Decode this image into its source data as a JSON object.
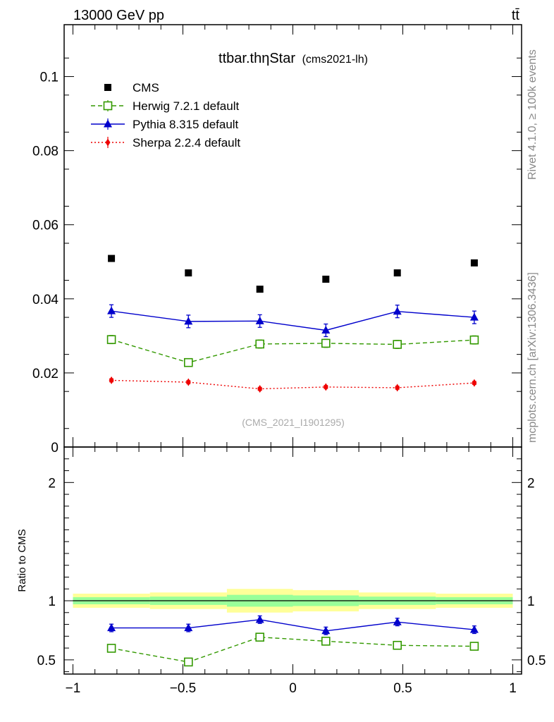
{
  "header": {
    "energy_label": "13000 GeV pp",
    "process_label": "tt̄"
  },
  "side_labels": {
    "rivet": "Rivet 4.1.0, ≥ 100k events",
    "source": "mcplots.cern.ch [arXiv:1306.3436]"
  },
  "chart_data": [
    {
      "type": "scatter",
      "panel": "main",
      "title": "ttbar.thηStar",
      "subtitle": "(cms2021-lh)",
      "watermark": "(CMS_2021_I1901295)",
      "ylim": [
        0,
        0.114
      ],
      "xlim": [
        -1.04,
        1.04
      ],
      "yticks": [
        0,
        0.02,
        0.04,
        0.06,
        0.08,
        0.1
      ],
      "ytick_labels": [
        "0",
        "0.02",
        "0.04",
        "0.06",
        "0.08",
        "0.1"
      ],
      "legend_position": "top-left",
      "x": [
        -0.825,
        -0.475,
        -0.15,
        0.15,
        0.475,
        0.825
      ],
      "series": [
        {
          "name": "CMS",
          "color": "#000000",
          "marker": "square-filled",
          "line": "none",
          "values": [
            0.0509,
            0.047,
            0.0426,
            0.0453,
            0.047,
            0.0497
          ],
          "errors": [
            0.0005,
            0.0005,
            0.0005,
            0.0005,
            0.0005,
            0.0005
          ]
        },
        {
          "name": "Herwig 7.2.1 default",
          "color": "#339900",
          "marker": "square-open",
          "line": "dashed",
          "values": [
            0.029,
            0.0228,
            0.0278,
            0.028,
            0.0277,
            0.0289
          ],
          "errors": [
            0.0011,
            0.001,
            0.0011,
            0.0011,
            0.0011,
            0.0011
          ]
        },
        {
          "name": "Pythia 8.315 default",
          "color": "#0000cc",
          "marker": "triangle-filled",
          "line": "solid",
          "values": [
            0.0367,
            0.0339,
            0.034,
            0.0315,
            0.0366,
            0.035
          ],
          "errors": [
            0.0017,
            0.0017,
            0.0017,
            0.0017,
            0.0017,
            0.0017
          ]
        },
        {
          "name": "Sherpa 2.2.4 default",
          "color": "#ee0000",
          "marker": "diamond-filled",
          "line": "dotted",
          "values": [
            0.018,
            0.0175,
            0.0157,
            0.0162,
            0.016,
            0.0173
          ],
          "errors": [
            0.0004,
            0.0004,
            0.0004,
            0.0004,
            0.0004,
            0.0004
          ]
        }
      ]
    },
    {
      "type": "scatter",
      "panel": "ratio",
      "ylabel": "Ratio to CMS",
      "ylim": [
        0.38,
        2.3
      ],
      "xlim": [
        -1.04,
        1.04
      ],
      "yticks": [
        0.5,
        1,
        2
      ],
      "ytick_labels": [
        "0.5",
        "1",
        "2"
      ],
      "xticks": [
        -1,
        -0.5,
        0,
        0.5,
        1
      ],
      "xtick_labels": [
        "−1",
        "−0.5",
        "0",
        "0.5",
        "1"
      ],
      "reference_line": 1,
      "bands": [
        {
          "name": "total uncertainty",
          "color": "#ffff99",
          "x_low": [
            -1.0,
            -0.65,
            -0.3,
            0.0,
            0.3,
            0.65
          ],
          "x_high": [
            -0.65,
            -0.3,
            0.0,
            0.3,
            0.65,
            1.0
          ],
          "low": [
            0.94,
            0.93,
            0.9,
            0.91,
            0.93,
            0.94
          ],
          "high": [
            1.06,
            1.07,
            1.1,
            1.09,
            1.07,
            1.06
          ]
        },
        {
          "name": "statistical uncertainty",
          "color": "#99ff99",
          "x_low": [
            -1.0,
            -0.65,
            -0.3,
            0.0,
            0.3,
            0.65
          ],
          "x_high": [
            -0.65,
            -0.3,
            0.0,
            0.3,
            0.65,
            1.0
          ],
          "low": [
            0.97,
            0.965,
            0.95,
            0.955,
            0.965,
            0.97
          ],
          "high": [
            1.03,
            1.035,
            1.05,
            1.045,
            1.035,
            1.03
          ]
        }
      ],
      "x": [
        -0.825,
        -0.475,
        -0.15,
        0.15,
        0.475,
        0.825
      ],
      "series": [
        {
          "name": "Herwig 7.2.1 default",
          "color": "#339900",
          "marker": "square-open",
          "line": "dashed",
          "values": [
            0.598,
            0.482,
            0.692,
            0.658,
            0.623,
            0.615
          ],
          "errors": [
            0.025,
            0.025,
            0.025,
            0.025,
            0.025,
            0.025
          ]
        },
        {
          "name": "Pythia 8.315 default",
          "color": "#0000cc",
          "marker": "triangle-filled",
          "line": "solid",
          "values": [
            0.77,
            0.77,
            0.84,
            0.745,
            0.82,
            0.755
          ],
          "errors": [
            0.032,
            0.032,
            0.032,
            0.032,
            0.032,
            0.032
          ]
        }
      ]
    }
  ]
}
